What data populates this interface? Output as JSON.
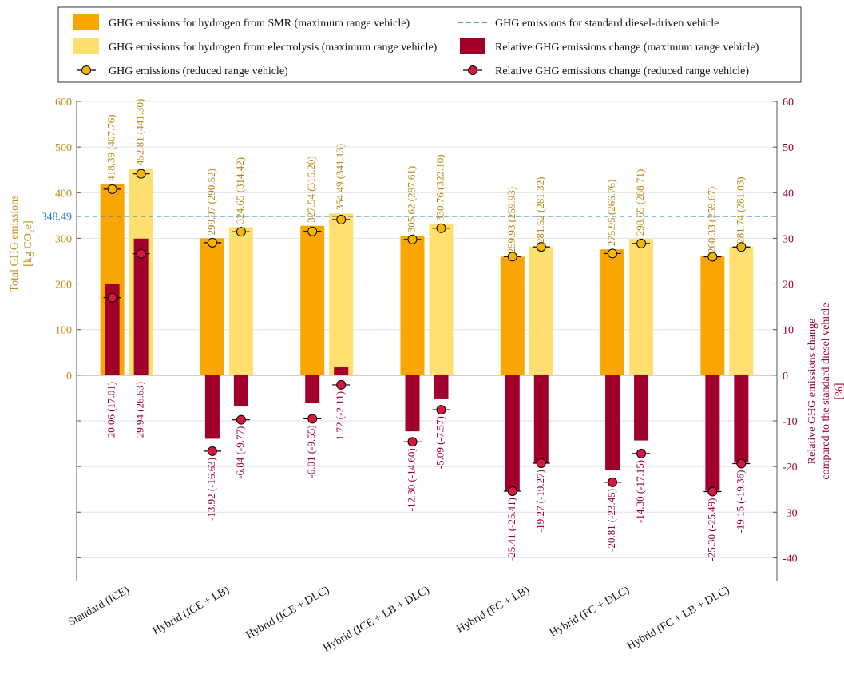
{
  "chart_data": {
    "type": "bar",
    "categories": [
      "Standard (ICE)",
      "Hybrid (ICE + LB)",
      "Hybrid (ICE + DLC)",
      "Hybrid (ICE + LB + DLC)",
      "Hybrid (FC + LB)",
      "Hybrid (FC + DLC)",
      "Hybrid (FC + LB + DLC)"
    ],
    "series": [
      {
        "name": "GHG emissions for hydrogen from SMR (maximum range vehicle)",
        "axis": "left",
        "color": "#f9a602",
        "values": [
          418.39,
          299.97,
          327.54,
          305.62,
          259.93,
          275.95,
          260.33
        ]
      },
      {
        "name": "GHG emissions for hydrogen from electrolysis (maximum range vehicle)",
        "axis": "left",
        "color": "#ffdf6e",
        "values": [
          452.81,
          324.65,
          354.49,
          330.76,
          281.52,
          298.65,
          281.74
        ]
      },
      {
        "name": "GHG emissions (reduced range vehicle)",
        "axis": "left",
        "marker": "circle",
        "smr": [
          407.76,
          290.52,
          315.2,
          297.61,
          259.93,
          266.76,
          259.67
        ],
        "electrolysis": [
          441.3,
          314.42,
          341.13,
          322.1,
          281.32,
          288.71,
          281.03
        ]
      },
      {
        "name": "Relative GHG emissions change (maximum range vehicle)",
        "axis": "right",
        "color": "#a0002a",
        "smr": [
          20.06,
          -13.92,
          -6.01,
          -12.3,
          -25.41,
          -20.81,
          -25.3
        ],
        "electrolysis": [
          29.94,
          -6.84,
          1.72,
          -5.09,
          -19.27,
          -14.3,
          -19.15
        ]
      },
      {
        "name": "Relative GHG emissions change (reduced range vehicle)",
        "axis": "right",
        "marker": "circle",
        "smr": [
          17.01,
          -16.63,
          -9.55,
          -14.6,
          -25.41,
          -23.45,
          -25.49
        ],
        "electrolysis": [
          26.63,
          -9.77,
          -2.11,
          -7.57,
          -19.27,
          -17.15,
          -19.36
        ]
      }
    ],
    "value_labels": {
      "smr_total": [
        "418.39 (407.76)",
        "299.97 (290.52)",
        "327.54 (315.20)",
        "305.62 (297.61)",
        "259.93 (259.93)",
        "275.95 (266.76)",
        "260.33 (259.67)"
      ],
      "electrolysis_total": [
        "452.81 (441.30)",
        "324.65 (314.42)",
        "354.49 (341.13)",
        "330.76 (322.10)",
        "281.52 (281.32)",
        "298.65 (288.71)",
        "281.74 (281.03)"
      ],
      "smr_change": [
        "20.06 (17.01)",
        "-13.92 (-16.63)",
        "-6.01 (-9.55)",
        "-12.30 (-14.60)",
        "-25.41 (-25.41)",
        "-20.81 (-23.45)",
        "-25.30 (-25.49)"
      ],
      "electrolysis_change": [
        "29.94 (26.63)",
        "-6.84 (-9.77)",
        "1.72 (-2.11)",
        "-5.09 (-7.57)",
        "-19.27 (-19.27)",
        "-14.30 (-17.15)",
        "-19.15 (-19.36)"
      ]
    },
    "reference_line": {
      "name": "GHG emissions for standard diesel-driven vehicle",
      "value": 348.49,
      "label": "348.49",
      "color": "#1f77c4"
    },
    "left_axis": {
      "label_line1": "Total GHG emissions",
      "label_line2": "[kg CO₂e]",
      "ticks": [
        "0",
        "100",
        "200",
        "300",
        "400",
        "500",
        "600"
      ],
      "range": [
        -450,
        600
      ],
      "color": "#c7891a"
    },
    "right_axis": {
      "label_line1": "Relative GHG emissions change",
      "label_line2": "compared to the standard diesel vehicle",
      "label_line3": "[%]",
      "ticks": [
        "-40",
        "-30",
        "-20",
        "-10",
        "0",
        "10",
        "20",
        "30",
        "40",
        "50",
        "60"
      ],
      "range": [
        -45,
        60
      ],
      "color": "#a0002a"
    },
    "grid": true,
    "legend_position": "top",
    "legend": [
      {
        "key": "smr",
        "label": "GHG emissions for hydrogen from SMR (maximum range vehicle)"
      },
      {
        "key": "ref",
        "label": "GHG emissions for standard diesel-driven vehicle"
      },
      {
        "key": "elec",
        "label": "GHG emissions for hydrogen from electrolysis (maximum range vehicle)"
      },
      {
        "key": "relbar",
        "label": "Relative GHG emissions change (maximum range vehicle)"
      },
      {
        "key": "dot",
        "label": "GHG emissions (reduced range vehicle)"
      },
      {
        "key": "reldot",
        "label": "Relative GHG emissions change (reduced range vehicle)"
      }
    ]
  }
}
